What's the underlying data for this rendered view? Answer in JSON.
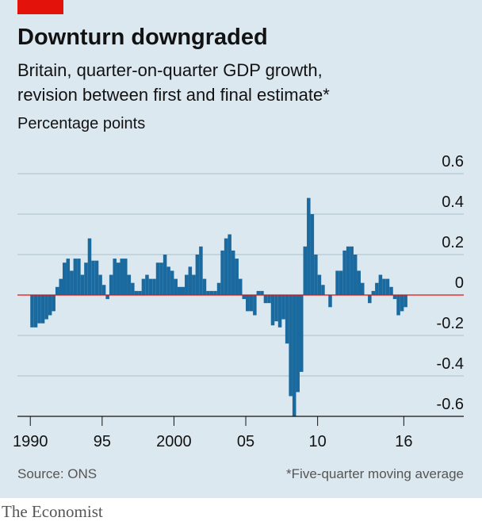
{
  "chart_data": {
    "type": "bar",
    "title": "Downturn downgraded",
    "subtitle": [
      "Britain, quarter-on-quarter GDP growth,",
      "revision between first and final estimate*"
    ],
    "y_label": "Percentage points",
    "source": "Source: ONS",
    "note": "*Five-quarter moving average",
    "brand": "The Economist",
    "color": "#1a6aa0",
    "categories": [
      "1990",
      null,
      null,
      null,
      null,
      null,
      null,
      null,
      null,
      null,
      null,
      null,
      null,
      null,
      null,
      null,
      null,
      null,
      null,
      null,
      "95",
      null,
      null,
      null,
      null,
      null,
      null,
      null,
      null,
      null,
      null,
      null,
      null,
      null,
      null,
      null,
      null,
      null,
      null,
      null,
      "2000",
      null,
      null,
      null,
      null,
      null,
      null,
      null,
      null,
      null,
      null,
      null,
      null,
      null,
      null,
      null,
      null,
      null,
      null,
      null,
      "05",
      null,
      null,
      null,
      null,
      null,
      null,
      null,
      null,
      null,
      null,
      null,
      null,
      null,
      null,
      null,
      null,
      null,
      null,
      null,
      "10",
      null,
      null,
      null,
      null,
      null,
      null,
      null,
      null,
      null,
      null,
      null,
      null,
      null,
      null,
      null,
      null,
      null,
      null,
      null,
      null,
      null,
      null,
      null,
      "16"
    ],
    "values": [
      -0.16,
      -0.16,
      -0.14,
      -0.14,
      -0.12,
      -0.1,
      -0.08,
      0.04,
      0.08,
      0.16,
      0.18,
      0.12,
      0.18,
      0.18,
      0.1,
      0.16,
      0.28,
      0.17,
      0.17,
      0.1,
      0.05,
      -0.02,
      0.1,
      0.18,
      0.16,
      0.18,
      0.18,
      0.1,
      0.06,
      0.02,
      0.02,
      0.08,
      0.1,
      0.08,
      0.08,
      0.16,
      0.16,
      0.2,
      0.14,
      0.12,
      0.08,
      0.04,
      0.04,
      0.1,
      0.14,
      0.1,
      0.2,
      0.24,
      0.08,
      0.02,
      0.02,
      0.02,
      0.06,
      0.22,
      0.28,
      0.3,
      0.22,
      0.18,
      0.08,
      -0.02,
      -0.08,
      -0.08,
      -0.1,
      0.02,
      0.02,
      -0.04,
      -0.04,
      -0.15,
      -0.13,
      -0.16,
      -0.12,
      -0.24,
      -0.5,
      -0.6,
      -0.48,
      -0.38,
      0.24,
      0.48,
      0.4,
      0.2,
      0.1,
      0.05,
      0,
      -0.06,
      0,
      0.12,
      0.12,
      0.22,
      0.24,
      0.24,
      0.2,
      0.12,
      0.06,
      0,
      -0.04,
      0.02,
      0.06,
      0.1,
      0.08,
      0.08,
      0.04,
      -0.02,
      -0.1,
      -0.08,
      -0.06
    ],
    "ylim": [
      -0.6,
      0.6
    ],
    "yticks": [
      0.6,
      0.4,
      0.2,
      0,
      -0.2,
      -0.4,
      -0.6
    ],
    "grid": true
  }
}
